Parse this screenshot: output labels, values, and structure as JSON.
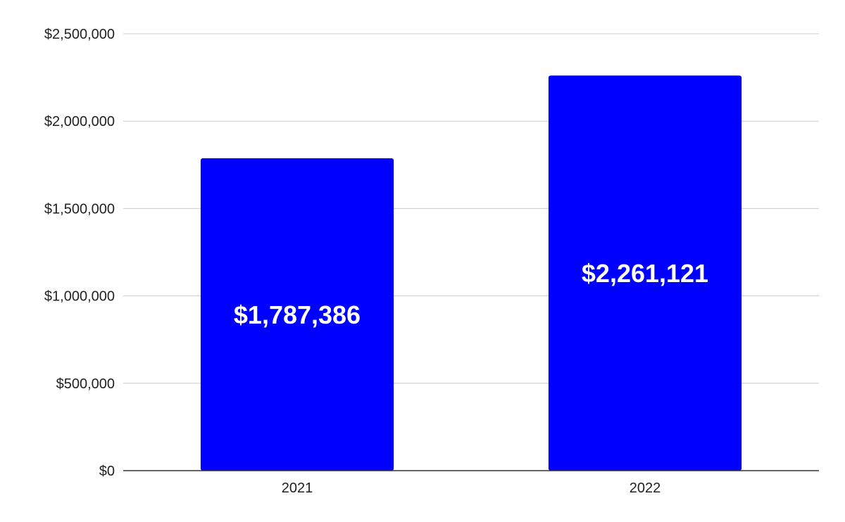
{
  "chart_data": {
    "type": "bar",
    "categories": [
      "2021",
      "2022"
    ],
    "values": [
      1787386,
      2261121
    ],
    "data_labels": [
      "$1,787,386",
      "$2,261,121"
    ],
    "title": "",
    "xlabel": "",
    "ylabel": "",
    "ylim": [
      0,
      2500000
    ],
    "y_ticks": [
      0,
      500000,
      1000000,
      1500000,
      2000000,
      2500000
    ],
    "y_tick_labels": [
      "$0",
      "$500,000",
      "$1,000,000",
      "$1,500,000",
      "$2,000,000",
      "$2,500,000"
    ],
    "grid": true,
    "legend": "none",
    "bar_color": "#0000ff",
    "grid_color": "#cccccc",
    "axis_color": "#333333"
  }
}
